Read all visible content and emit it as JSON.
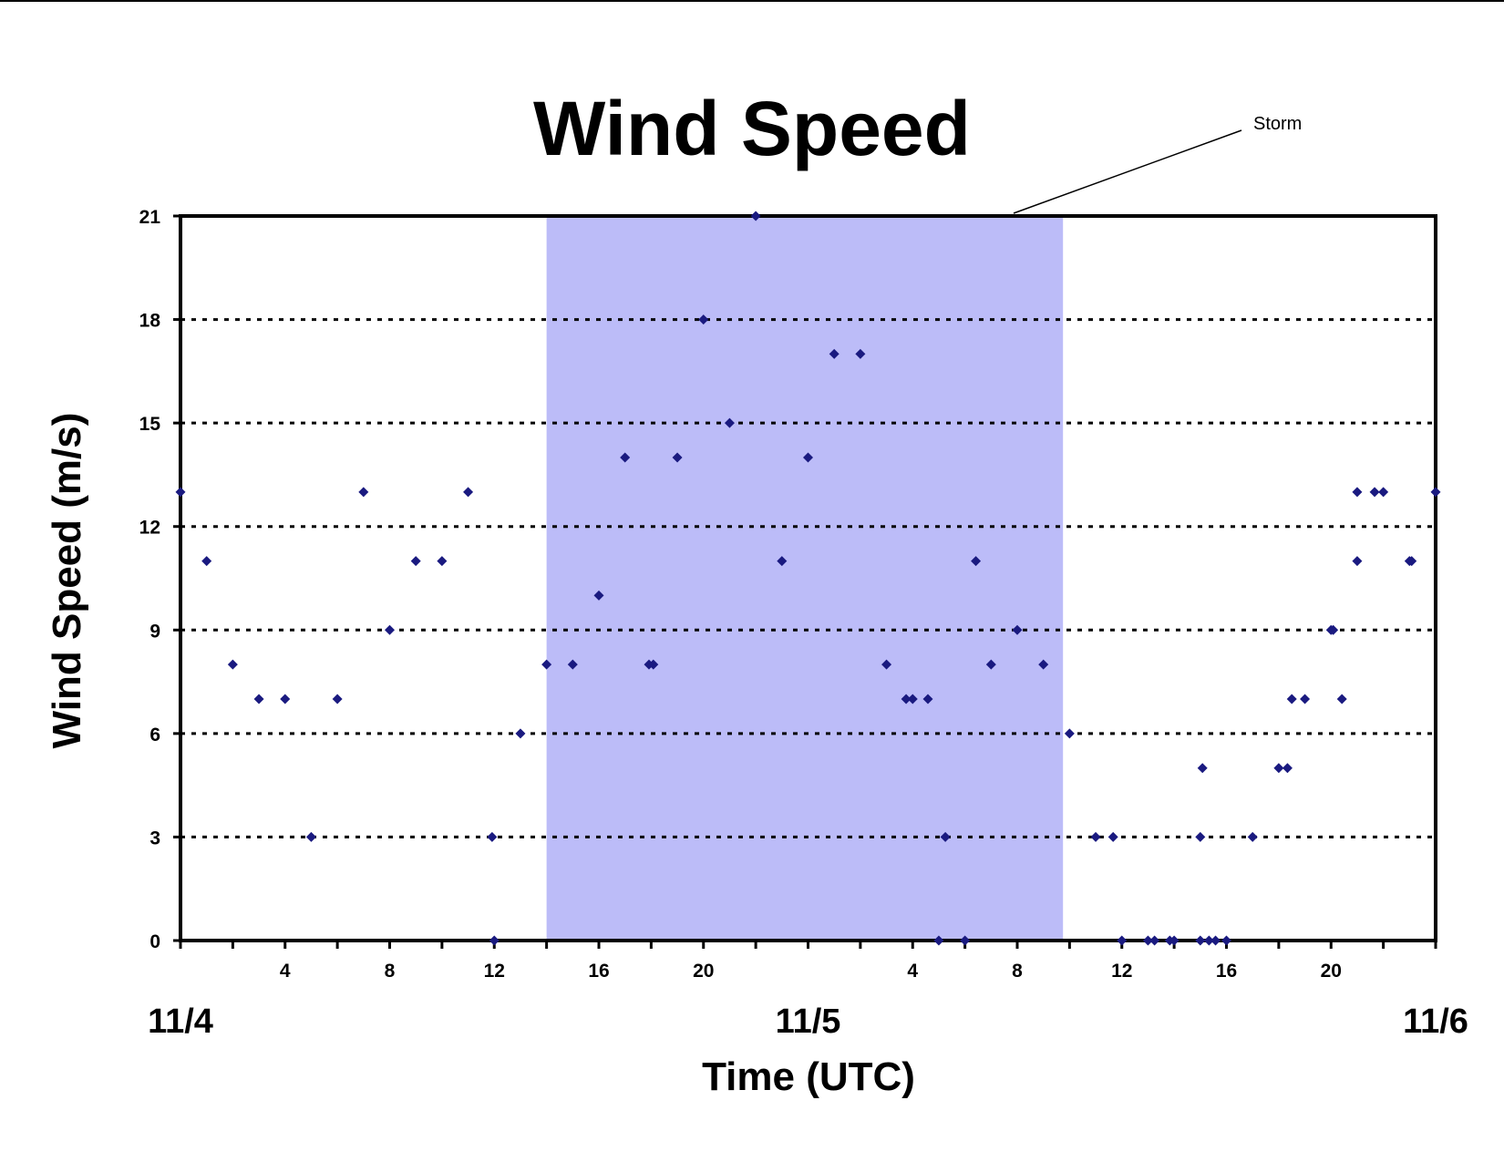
{
  "chart_data": {
    "type": "scatter",
    "title": "Wind Speed",
    "xlabel": "Time (UTC)",
    "ylabel": "Wind Speed (m/s)",
    "ylim": [
      0,
      21
    ],
    "xlim": [
      "11/4 00:00",
      "11/6 00:00"
    ],
    "yticks": [
      "0",
      "3",
      "6",
      "9",
      "12",
      "15",
      "18",
      "21"
    ],
    "xtick_labels": [
      {
        "time": "11/4 04:00",
        "label": "4"
      },
      {
        "time": "11/4 08:00",
        "label": "8"
      },
      {
        "time": "11/4 12:00",
        "label": "12"
      },
      {
        "time": "11/4 16:00",
        "label": "16"
      },
      {
        "time": "11/4 20:00",
        "label": "20"
      },
      {
        "time": "11/5 04:00",
        "label": "4"
      },
      {
        "time": "11/5 08:00",
        "label": "8"
      },
      {
        "time": "11/5 12:00",
        "label": "12"
      },
      {
        "time": "11/5 16:00",
        "label": "16"
      },
      {
        "time": "11/5 20:00",
        "label": "20"
      }
    ],
    "day_labels": [
      {
        "time": "11/4 00:00",
        "label": "11/4"
      },
      {
        "time": "11/5 00:00",
        "label": "11/5"
      },
      {
        "time": "11/6 00:00",
        "label": "11/6"
      }
    ],
    "grid": "horizontal dotted",
    "storm_band": {
      "start": "11/4 14:00",
      "end": "11/5 09:45",
      "label": "Storm",
      "color": "#bcbcf8"
    },
    "marker_color": "#1a1a80",
    "series": [
      {
        "points": [
          [
            "11/4 00:00",
            13
          ],
          [
            "11/4 01:00",
            11
          ],
          [
            "11/4 02:00",
            8
          ],
          [
            "11/4 03:00",
            7
          ],
          [
            "11/4 04:00",
            7
          ],
          [
            "11/4 05:00",
            3
          ],
          [
            "11/4 06:00",
            7
          ],
          [
            "11/4 07:00",
            13
          ],
          [
            "11/4 08:00",
            9
          ],
          [
            "11/4 09:00",
            11
          ],
          [
            "11/4 10:00",
            11
          ],
          [
            "11/4 11:00",
            13
          ],
          [
            "11/4 11:55",
            3
          ],
          [
            "11/4 12:00",
            0
          ],
          [
            "11/4 13:00",
            6
          ],
          [
            "11/4 14:00",
            8
          ],
          [
            "11/4 15:00",
            8
          ],
          [
            "11/4 16:00",
            10
          ],
          [
            "11/4 17:00",
            14
          ],
          [
            "11/4 17:55",
            8
          ],
          [
            "11/4 18:05",
            8
          ],
          [
            "11/4 19:00",
            14
          ],
          [
            "11/4 20:00",
            18
          ],
          [
            "11/4 21:00",
            15
          ],
          [
            "11/4 22:00",
            21
          ],
          [
            "11/4 23:00",
            11
          ],
          [
            "11/5 00:00",
            14
          ],
          [
            "11/5 01:00",
            17
          ],
          [
            "11/5 02:00",
            17
          ],
          [
            "11/5 03:00",
            8
          ],
          [
            "11/5 03:45",
            7
          ],
          [
            "11/5 04:00",
            7
          ],
          [
            "11/5 04:35",
            7
          ],
          [
            "11/5 05:00",
            0
          ],
          [
            "11/5 05:15",
            3
          ],
          [
            "11/5 06:00",
            0
          ],
          [
            "11/5 06:25",
            11
          ],
          [
            "11/5 07:00",
            8
          ],
          [
            "11/5 08:00",
            9
          ],
          [
            "11/5 09:00",
            8
          ],
          [
            "11/5 10:00",
            6
          ],
          [
            "11/5 11:00",
            3
          ],
          [
            "11/5 11:40",
            3
          ],
          [
            "11/5 12:00",
            0
          ],
          [
            "11/5 13:00",
            0
          ],
          [
            "11/5 13:15",
            0
          ],
          [
            "11/5 13:50",
            0
          ],
          [
            "11/5 14:00",
            0
          ],
          [
            "11/5 15:00",
            0
          ],
          [
            "11/5 15:00",
            3
          ],
          [
            "11/5 15:05",
            5
          ],
          [
            "11/5 15:20",
            0
          ],
          [
            "11/5 15:35",
            0
          ],
          [
            "11/5 16:00",
            0
          ],
          [
            "11/5 17:00",
            3
          ],
          [
            "11/5 18:00",
            5
          ],
          [
            "11/5 18:20",
            5
          ],
          [
            "11/5 18:30",
            7
          ],
          [
            "11/5 19:00",
            7
          ],
          [
            "11/5 20:00",
            9
          ],
          [
            "11/5 20:05",
            9
          ],
          [
            "11/5 20:25",
            7
          ],
          [
            "11/5 21:00",
            11
          ],
          [
            "11/5 21:00",
            13
          ],
          [
            "11/5 21:40",
            13
          ],
          [
            "11/5 22:00",
            13
          ],
          [
            "11/5 23:00",
            11
          ],
          [
            "11/5 23:05",
            11
          ],
          [
            "11/6 00:00",
            13
          ]
        ]
      }
    ]
  }
}
